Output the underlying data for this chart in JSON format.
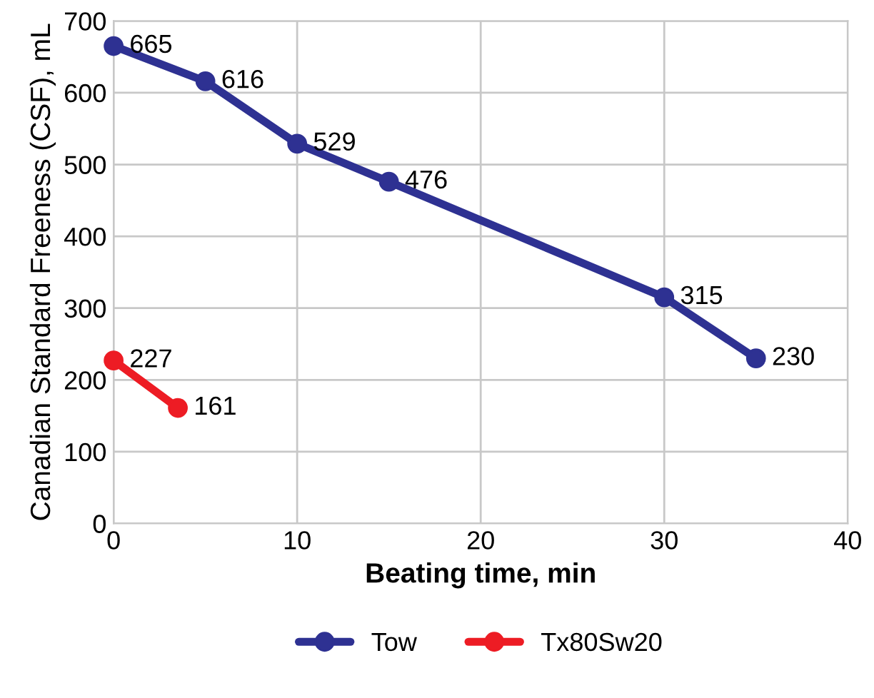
{
  "chart_data": {
    "type": "line",
    "xlabel": "Beating time, min",
    "ylabel": "Canadian Standard Freeness (CSF), mL",
    "xlim": [
      0,
      40
    ],
    "xticks": [
      0,
      10,
      20,
      30,
      40
    ],
    "ylim": [
      0,
      700
    ],
    "yticks": [
      0,
      100,
      200,
      300,
      400,
      500,
      600,
      700
    ],
    "series": [
      {
        "name": "Tow",
        "color": "#2e3192",
        "x": [
          0,
          5,
          10,
          15,
          30,
          35
        ],
        "values": [
          665,
          616,
          529,
          476,
          315,
          230
        ]
      },
      {
        "name": "Tx80Sw20",
        "color": "#ed1c24",
        "x": [
          0,
          3.5
        ],
        "values": [
          227,
          161
        ]
      }
    ],
    "data_labels": true,
    "grid": true,
    "legend": "bottom",
    "marker": "circle",
    "line_style": "solid"
  }
}
